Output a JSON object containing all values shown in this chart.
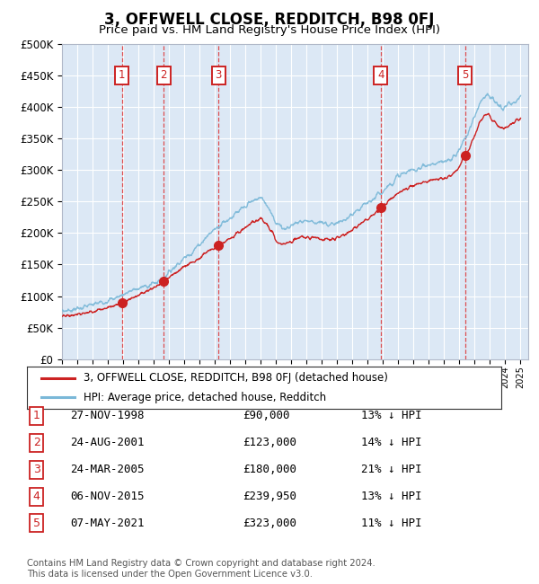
{
  "title": "3, OFFWELL CLOSE, REDDITCH, B98 0FJ",
  "subtitle": "Price paid vs. HM Land Registry's House Price Index (HPI)",
  "ylim": [
    0,
    500000
  ],
  "yticks": [
    0,
    50000,
    100000,
    150000,
    200000,
    250000,
    300000,
    350000,
    400000,
    450000,
    500000
  ],
  "ytick_labels": [
    "£0",
    "£50K",
    "£100K",
    "£150K",
    "£200K",
    "£250K",
    "£300K",
    "£350K",
    "£400K",
    "£450K",
    "£500K"
  ],
  "background_color": "#ffffff",
  "plot_bg_color": "#dce8f5",
  "grid_color": "#ffffff",
  "sale_dates_decimal": [
    1998.91,
    2001.65,
    2005.23,
    2015.85,
    2021.36
  ],
  "sale_prices": [
    90000,
    123000,
    180000,
    239950,
    323000
  ],
  "sale_labels": [
    "1",
    "2",
    "3",
    "4",
    "5"
  ],
  "sale_info": [
    {
      "label": "1",
      "date": "27-NOV-1998",
      "price": "£90,000",
      "hpi": "13% ↓ HPI"
    },
    {
      "label": "2",
      "date": "24-AUG-2001",
      "price": "£123,000",
      "hpi": "14% ↓ HPI"
    },
    {
      "label": "3",
      "date": "24-MAR-2005",
      "price": "£180,000",
      "hpi": "21% ↓ HPI"
    },
    {
      "label": "4",
      "date": "06-NOV-2015",
      "price": "£239,950",
      "hpi": "13% ↓ HPI"
    },
    {
      "label": "5",
      "date": "07-MAY-2021",
      "price": "£323,000",
      "hpi": "11% ↓ HPI"
    }
  ],
  "hpi_line_color": "#7ab8d8",
  "price_line_color": "#cc2222",
  "sale_marker_color": "#cc2222",
  "dashed_line_color": "#dd3333",
  "sale_box_color": "#cc2222",
  "footnote": "Contains HM Land Registry data © Crown copyright and database right 2024.\nThis data is licensed under the Open Government Licence v3.0.",
  "legend_entries": [
    "3, OFFWELL CLOSE, REDDITCH, B98 0FJ (detached house)",
    "HPI: Average price, detached house, Redditch"
  ]
}
